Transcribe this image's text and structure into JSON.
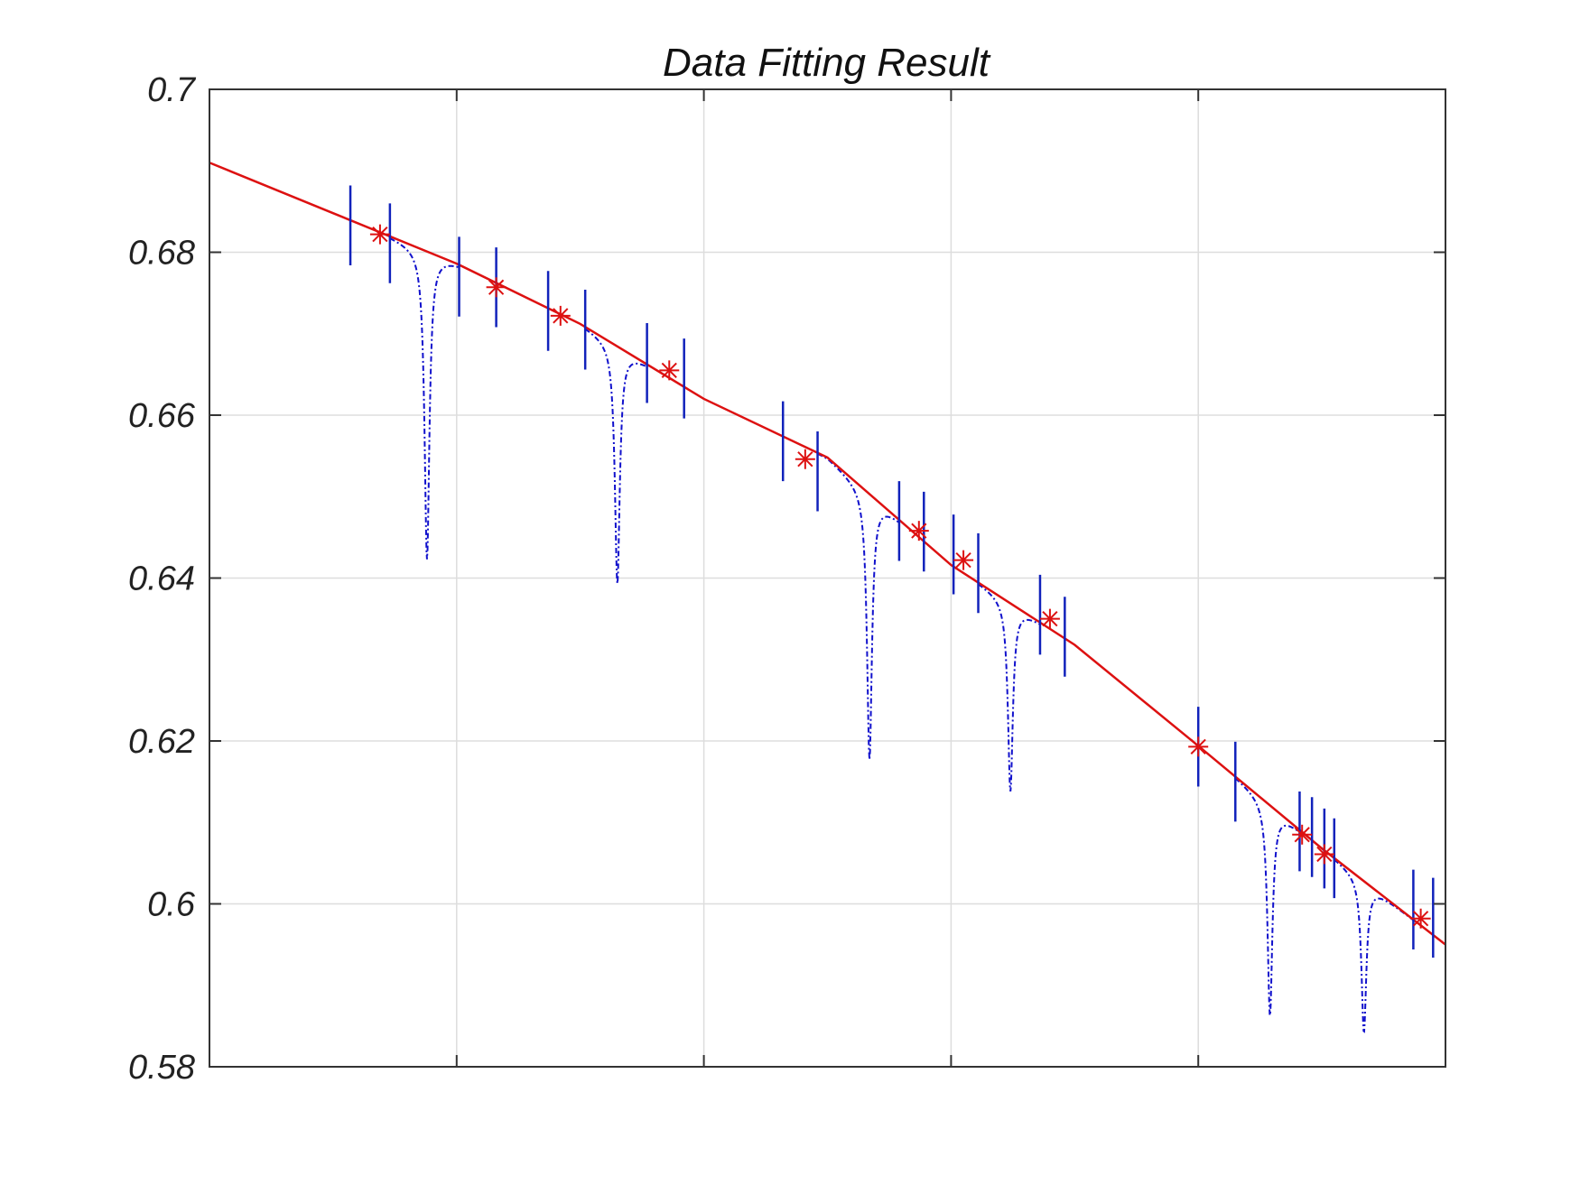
{
  "chart_data": {
    "type": "line",
    "title": "Data Fitting Result",
    "xlabel": "",
    "ylabel": "",
    "xlim": [
      0,
      5
    ],
    "ylim": [
      0.58,
      0.7
    ],
    "yticks": [
      0.58,
      0.6,
      0.62,
      0.64,
      0.66,
      0.68,
      0.7
    ],
    "ytick_labels": [
      "0.58",
      "0.6",
      "0.62",
      "0.64",
      "0.66",
      "0.68",
      "0.7"
    ],
    "xticks": [
      1,
      2,
      3,
      4
    ],
    "grid": true,
    "colors": {
      "fit_line": "#dd1111",
      "dip_curve": "#1111cc",
      "marker": "#dd1111",
      "bar": "#1122bb",
      "grid": "#dddddd",
      "axis": "#333333"
    },
    "fit_line": {
      "x": [
        0,
        0.5,
        1,
        1.5,
        2,
        2.5,
        3,
        3.5,
        4,
        4.5,
        5
      ],
      "y": [
        0.691,
        0.6848,
        0.6786,
        0.6712,
        0.662,
        0.6548,
        0.6416,
        0.6318,
        0.6194,
        0.6068,
        0.595
      ]
    },
    "markers": {
      "x": [
        0.69,
        1.16,
        1.42,
        1.86,
        2.41,
        2.87,
        3.05,
        3.4,
        4.0,
        4.42,
        4.51,
        4.9
      ],
      "y": [
        0.6822,
        0.6757,
        0.6722,
        0.6655,
        0.6546,
        0.6458,
        0.6422,
        0.635,
        0.6193,
        0.6085,
        0.6061,
        0.5982
      ]
    },
    "bars": {
      "x": [
        0.57,
        0.73,
        1.01,
        1.16,
        1.37,
        1.52,
        1.77,
        1.92,
        2.32,
        2.46,
        2.79,
        2.89,
        3.01,
        3.11,
        3.36,
        3.46,
        4.0,
        4.15,
        4.41,
        4.46,
        4.51,
        4.55,
        4.87,
        4.95
      ],
      "center": [
        0.6833,
        0.6811,
        0.677,
        0.6757,
        0.6728,
        0.6705,
        0.6664,
        0.6645,
        0.6568,
        0.6531,
        0.647,
        0.6457,
        0.6429,
        0.6406,
        0.6355,
        0.6328,
        0.6193,
        0.615,
        0.6089,
        0.6082,
        0.6068,
        0.6056,
        0.5993,
        0.5983
      ],
      "half_height": 0.0049
    },
    "dips": [
      {
        "start": 0.73,
        "end": 1.01,
        "center": 0.88,
        "depth_y": 0.6423
      },
      {
        "start": 1.52,
        "end": 1.77,
        "center": 1.65,
        "depth_y": 0.6393
      },
      {
        "start": 2.46,
        "end": 2.79,
        "center": 2.67,
        "depth_y": 0.6177
      },
      {
        "start": 3.11,
        "end": 3.36,
        "center": 3.24,
        "depth_y": 0.6138
      },
      {
        "start": 4.15,
        "end": 4.41,
        "center": 4.29,
        "depth_y": 0.5862
      },
      {
        "start": 4.55,
        "end": 4.87,
        "center": 4.67,
        "depth_y": 0.5842
      }
    ]
  }
}
